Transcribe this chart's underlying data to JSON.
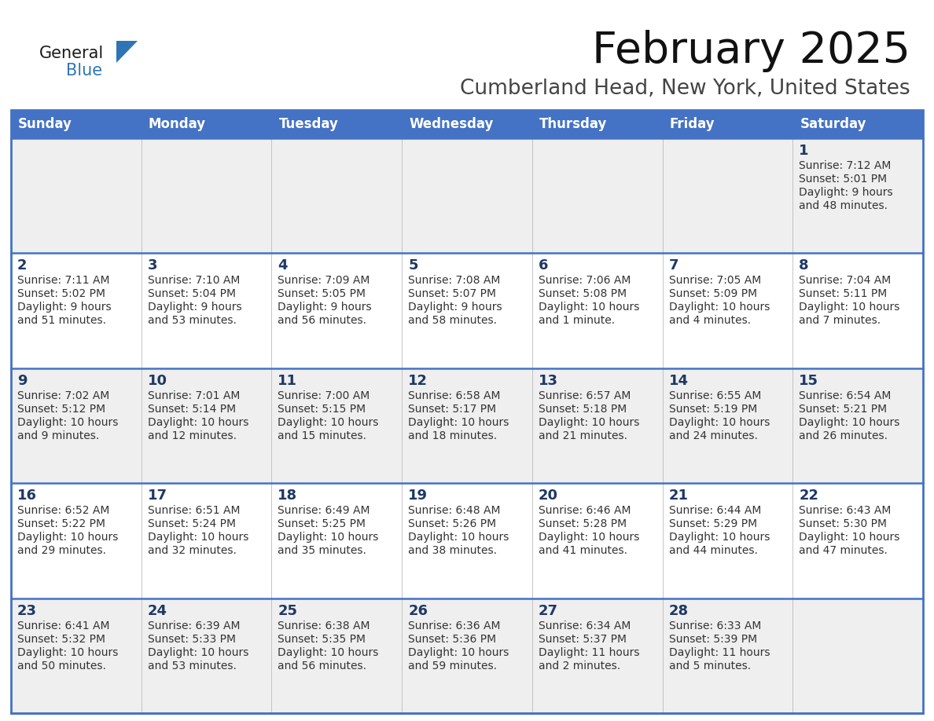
{
  "title": "February 2025",
  "subtitle": "Cumberland Head, New York, United States",
  "header_bg": "#4472C4",
  "header_text": "#FFFFFF",
  "day_names": [
    "Sunday",
    "Monday",
    "Tuesday",
    "Wednesday",
    "Thursday",
    "Friday",
    "Saturday"
  ],
  "row_bg_odd": "#EFEFEF",
  "row_bg_even": "#FFFFFF",
  "cell_text_color": "#333333",
  "date_color": "#1F3864",
  "border_color": "#4472C4",
  "thin_border_color": "#4472C4",
  "logo_general_color": "#1a1a1a",
  "logo_blue_color": "#2E75B6",
  "calendar": [
    [
      null,
      null,
      null,
      null,
      null,
      null,
      {
        "day": 1,
        "sunrise": "7:12 AM",
        "sunset": "5:01 PM",
        "daylight": "9 hours and 48 minutes."
      }
    ],
    [
      {
        "day": 2,
        "sunrise": "7:11 AM",
        "sunset": "5:02 PM",
        "daylight": "9 hours and 51 minutes."
      },
      {
        "day": 3,
        "sunrise": "7:10 AM",
        "sunset": "5:04 PM",
        "daylight": "9 hours and 53 minutes."
      },
      {
        "day": 4,
        "sunrise": "7:09 AM",
        "sunset": "5:05 PM",
        "daylight": "9 hours and 56 minutes."
      },
      {
        "day": 5,
        "sunrise": "7:08 AM",
        "sunset": "5:07 PM",
        "daylight": "9 hours and 58 minutes."
      },
      {
        "day": 6,
        "sunrise": "7:06 AM",
        "sunset": "5:08 PM",
        "daylight": "10 hours and 1 minute."
      },
      {
        "day": 7,
        "sunrise": "7:05 AM",
        "sunset": "5:09 PM",
        "daylight": "10 hours and 4 minutes."
      },
      {
        "day": 8,
        "sunrise": "7:04 AM",
        "sunset": "5:11 PM",
        "daylight": "10 hours and 7 minutes."
      }
    ],
    [
      {
        "day": 9,
        "sunrise": "7:02 AM",
        "sunset": "5:12 PM",
        "daylight": "10 hours and 9 minutes."
      },
      {
        "day": 10,
        "sunrise": "7:01 AM",
        "sunset": "5:14 PM",
        "daylight": "10 hours and 12 minutes."
      },
      {
        "day": 11,
        "sunrise": "7:00 AM",
        "sunset": "5:15 PM",
        "daylight": "10 hours and 15 minutes."
      },
      {
        "day": 12,
        "sunrise": "6:58 AM",
        "sunset": "5:17 PM",
        "daylight": "10 hours and 18 minutes."
      },
      {
        "day": 13,
        "sunrise": "6:57 AM",
        "sunset": "5:18 PM",
        "daylight": "10 hours and 21 minutes."
      },
      {
        "day": 14,
        "sunrise": "6:55 AM",
        "sunset": "5:19 PM",
        "daylight": "10 hours and 24 minutes."
      },
      {
        "day": 15,
        "sunrise": "6:54 AM",
        "sunset": "5:21 PM",
        "daylight": "10 hours and 26 minutes."
      }
    ],
    [
      {
        "day": 16,
        "sunrise": "6:52 AM",
        "sunset": "5:22 PM",
        "daylight": "10 hours and 29 minutes."
      },
      {
        "day": 17,
        "sunrise": "6:51 AM",
        "sunset": "5:24 PM",
        "daylight": "10 hours and 32 minutes."
      },
      {
        "day": 18,
        "sunrise": "6:49 AM",
        "sunset": "5:25 PM",
        "daylight": "10 hours and 35 minutes."
      },
      {
        "day": 19,
        "sunrise": "6:48 AM",
        "sunset": "5:26 PM",
        "daylight": "10 hours and 38 minutes."
      },
      {
        "day": 20,
        "sunrise": "6:46 AM",
        "sunset": "5:28 PM",
        "daylight": "10 hours and 41 minutes."
      },
      {
        "day": 21,
        "sunrise": "6:44 AM",
        "sunset": "5:29 PM",
        "daylight": "10 hours and 44 minutes."
      },
      {
        "day": 22,
        "sunrise": "6:43 AM",
        "sunset": "5:30 PM",
        "daylight": "10 hours and 47 minutes."
      }
    ],
    [
      {
        "day": 23,
        "sunrise": "6:41 AM",
        "sunset": "5:32 PM",
        "daylight": "10 hours and 50 minutes."
      },
      {
        "day": 24,
        "sunrise": "6:39 AM",
        "sunset": "5:33 PM",
        "daylight": "10 hours and 53 minutes."
      },
      {
        "day": 25,
        "sunrise": "6:38 AM",
        "sunset": "5:35 PM",
        "daylight": "10 hours and 56 minutes."
      },
      {
        "day": 26,
        "sunrise": "6:36 AM",
        "sunset": "5:36 PM",
        "daylight": "10 hours and 59 minutes."
      },
      {
        "day": 27,
        "sunrise": "6:34 AM",
        "sunset": "5:37 PM",
        "daylight": "11 hours and 2 minutes."
      },
      {
        "day": 28,
        "sunrise": "6:33 AM",
        "sunset": "5:39 PM",
        "daylight": "11 hours and 5 minutes."
      },
      null
    ]
  ]
}
